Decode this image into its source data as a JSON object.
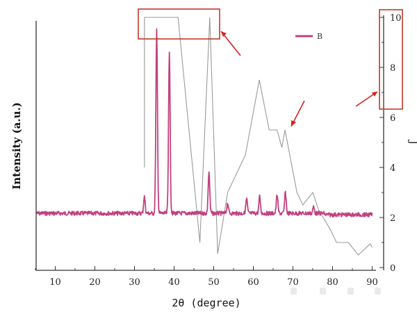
{
  "chart_data": {
    "type": "line",
    "xlabel": "2θ (degree)",
    "ylabel": "Intensity (a.u.)",
    "y2label": "J",
    "xlim": [
      5,
      90
    ],
    "x_ticks": [
      "10",
      "20",
      "30",
      "40",
      "50",
      "60",
      "70",
      "80",
      "90"
    ],
    "y2lim": [
      0,
      10
    ],
    "y2_ticks": [
      "0",
      "2",
      "4",
      "6",
      "8",
      "10"
    ],
    "legend": {
      "label": "B",
      "color": "#c2407f",
      "placement": "top-right"
    },
    "series": [
      {
        "name": "B",
        "axis": "left-relative",
        "color": "#c2407f",
        "peaks": [
          {
            "x": 32.5,
            "rel_height": 0.08
          },
          {
            "x": 35.6,
            "rel_height": 0.88
          },
          {
            "x": 38.8,
            "rel_height": 0.78
          },
          {
            "x": 48.8,
            "rel_height": 0.2
          },
          {
            "x": 53.5,
            "rel_height": 0.05
          },
          {
            "x": 58.3,
            "rel_height": 0.07
          },
          {
            "x": 61.6,
            "rel_height": 0.08
          },
          {
            "x": 66.0,
            "rel_height": 0.09
          },
          {
            "x": 68.1,
            "rel_height": 0.1
          },
          {
            "x": 75.2,
            "rel_height": 0.03
          }
        ]
      },
      {
        "axis": "right",
        "color": "#999999",
        "x": [
          32.5,
          32.5,
          36.5,
          41.0,
          46.5,
          49.0,
          51.0,
          53.5,
          58.0,
          61.5,
          64.0,
          66.0,
          67.2,
          68.0,
          71.0,
          72.5,
          75.0,
          76.5,
          79.5,
          81.0,
          84.0,
          86.5,
          89.5,
          90.0
        ],
        "y": [
          4.0,
          10.0,
          10.0,
          10.0,
          1.0,
          10.0,
          0.55,
          3.0,
          4.5,
          7.5,
          5.5,
          5.5,
          4.8,
          5.5,
          3.0,
          2.5,
          3.0,
          2.3,
          1.5,
          1.0,
          1.0,
          0.5,
          0.95,
          0.8
        ]
      }
    ],
    "annotations": {
      "box_color": "#c0392b",
      "arrow_color": "#d62020"
    }
  }
}
